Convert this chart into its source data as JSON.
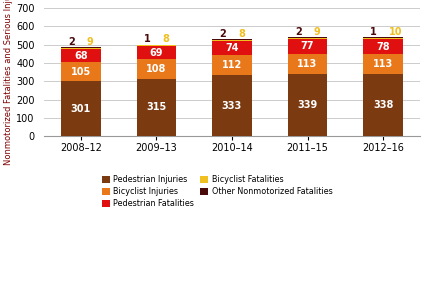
{
  "categories": [
    "2008–12",
    "2009–13",
    "2010–14",
    "2011–15",
    "2012–16"
  ],
  "pedestrian_injuries": [
    301,
    315,
    333,
    339,
    338
  ],
  "bicyclist_injuries": [
    105,
    108,
    112,
    113,
    113
  ],
  "pedestrian_fatalities": [
    68,
    69,
    74,
    77,
    78
  ],
  "bicyclist_fatalities": [
    9,
    8,
    8,
    9,
    10
  ],
  "other_nonmotorized_fatalities": [
    2,
    1,
    2,
    2,
    1
  ],
  "colors": {
    "pedestrian_injuries": "#7B3A10",
    "bicyclist_injuries": "#E8781A",
    "pedestrian_fatalities": "#E01010",
    "bicyclist_fatalities": "#F0C020",
    "other_nonmotorized_fatalities": "#4A0A0A"
  },
  "legend_labels": {
    "pedestrian_injuries": "Pedestrian Injuries",
    "bicyclist_injuries": "Bicyclist Injuries",
    "pedestrian_fatalities": "Pedestrian Fatalities",
    "bicyclist_fatalities": "Bicyclist Fatalities",
    "other_nonmotorized_fatalities": "Other Nonmotorized Fatalities"
  },
  "ylabel": "Nonmotorized Fatalities and Serious Injuries",
  "ylim": [
    0,
    700
  ],
  "yticks": [
    0,
    100,
    200,
    300,
    400,
    500,
    600,
    700
  ],
  "background_color": "#FFFFFF",
  "grid_color": "#CCCCCC",
  "ylabel_color": "#800000",
  "label_fontsize": 7,
  "tick_fontsize": 7
}
